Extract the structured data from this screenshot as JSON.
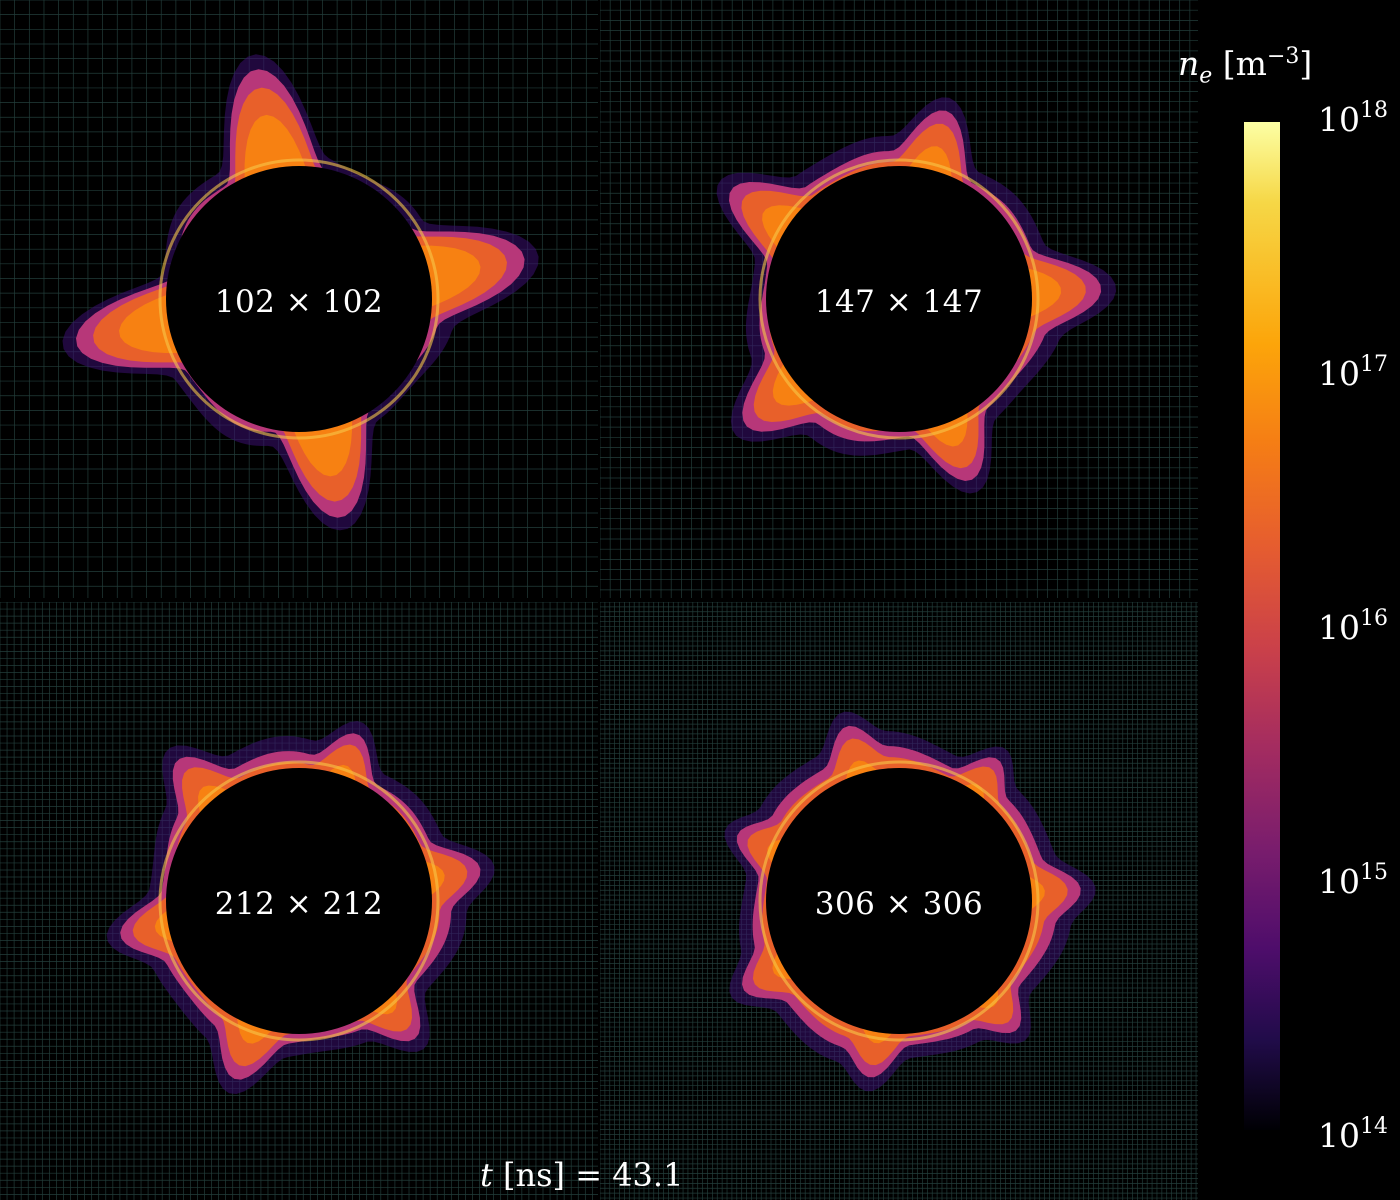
{
  "chart_data": {
    "type": "heatmap",
    "panels": [
      {
        "label": "102 × 102",
        "grid_n": 102,
        "lobes": 4
      },
      {
        "label": "147 × 147",
        "grid_n": 147,
        "lobes": 5
      },
      {
        "label": "212 × 212",
        "grid_n": 212,
        "lobes": 6
      },
      {
        "label": "306 × 306",
        "grid_n": 306,
        "lobes": 7
      }
    ],
    "colorbar": {
      "title_var": "n",
      "title_sub": "e",
      "title_unit": "[m",
      "title_exp": "−3",
      "title_close": "]",
      "scale": "log",
      "range": [
        100000000000000.0,
        1e+18
      ],
      "ticks": [
        {
          "base": "10",
          "exp": "18"
        },
        {
          "base": "10",
          "exp": "17"
        },
        {
          "base": "10",
          "exp": "16"
        },
        {
          "base": "10",
          "exp": "15"
        },
        {
          "base": "10",
          "exp": "14"
        }
      ],
      "colormap": "inferno"
    },
    "time": {
      "var": "t",
      "unit": "[ns]",
      "eq": "= 43.1",
      "value": 43.1
    }
  }
}
